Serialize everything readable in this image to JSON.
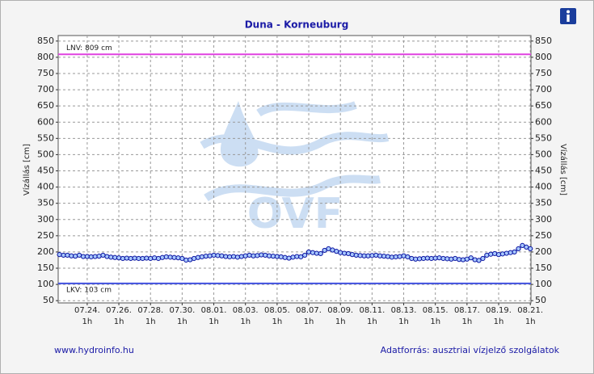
{
  "chart_data": {
    "type": "line",
    "title": "Duna - Korneuburg",
    "ylabel": "Vízállás [cm]",
    "y2label": "Vízállás [cm]",
    "ylim": [
      43,
      867
    ],
    "yticks": [
      50,
      100,
      150,
      200,
      250,
      300,
      350,
      400,
      450,
      500,
      550,
      600,
      650,
      700,
      750,
      800,
      850
    ],
    "y2lim": [
      43,
      867
    ],
    "y2ticks": [
      50,
      100,
      150,
      200,
      250,
      300,
      350,
      400,
      450,
      500,
      550,
      600,
      650,
      700,
      750,
      800,
      850
    ],
    "xlim": [
      "07.22. 5h",
      "08.21. 2h"
    ],
    "xticks": [
      {
        "date": "07.24.",
        "hour": "1h"
      },
      {
        "date": "07.26.",
        "hour": "1h"
      },
      {
        "date": "07.28.",
        "hour": "1h"
      },
      {
        "date": "07.30.",
        "hour": "1h"
      },
      {
        "date": "08.01.",
        "hour": "1h"
      },
      {
        "date": "08.03.",
        "hour": "1h"
      },
      {
        "date": "08.05.",
        "hour": "1h"
      },
      {
        "date": "08.07.",
        "hour": "1h"
      },
      {
        "date": "08.09.",
        "hour": "1h"
      },
      {
        "date": "08.11.",
        "hour": "1h"
      },
      {
        "date": "08.13.",
        "hour": "1h"
      },
      {
        "date": "08.15.",
        "hour": "1h"
      },
      {
        "date": "08.17.",
        "hour": "1h"
      },
      {
        "date": "08.19.",
        "hour": "1h"
      },
      {
        "date": "08.21.",
        "hour": "1h"
      }
    ],
    "grid": true,
    "series": [
      {
        "color": "#0a14a0",
        "marker_fill": "#a8c8ff",
        "x": [
          "07.22. 7h",
          "07.22. 13h",
          "07.22. 19h",
          "07.23. 1h",
          "07.23. 7h",
          "07.23. 13h",
          "07.23. 19h",
          "07.24. 1h",
          "07.24. 7h",
          "07.24. 13h",
          "07.24. 19h",
          "07.25. 1h",
          "07.25. 7h",
          "07.25. 13h",
          "07.25. 19h",
          "07.26. 1h",
          "07.26. 7h",
          "07.26. 13h",
          "07.26. 19h",
          "07.27. 1h",
          "07.27. 7h",
          "07.27. 13h",
          "07.27. 19h",
          "07.28. 1h",
          "07.28. 7h",
          "07.28. 13h",
          "07.28. 19h",
          "07.29. 1h",
          "07.29. 7h",
          "07.29. 13h",
          "07.29. 19h",
          "07.30. 1h",
          "07.30. 7h",
          "07.30. 13h",
          "07.30. 19h",
          "07.31. 1h",
          "07.31. 7h",
          "07.31. 13h",
          "07.31. 19h",
          "08.01. 1h",
          "08.01. 7h",
          "08.01. 13h",
          "08.01. 19h",
          "08.02. 1h",
          "08.02. 7h",
          "08.02. 13h",
          "08.02. 19h",
          "08.03. 1h",
          "08.03. 7h",
          "08.03. 13h",
          "08.03. 19h",
          "08.04. 1h",
          "08.04. 7h",
          "08.04. 13h",
          "08.04. 19h",
          "08.05. 1h",
          "08.05. 7h",
          "08.05. 13h",
          "08.05. 19h",
          "08.06. 1h",
          "08.06. 7h",
          "08.06. 13h",
          "08.06. 19h",
          "08.07. 1h",
          "08.07. 7h",
          "08.07. 13h",
          "08.07. 19h",
          "08.08. 1h",
          "08.08. 7h",
          "08.08. 13h",
          "08.08. 19h",
          "08.09. 1h",
          "08.09. 7h",
          "08.09. 13h",
          "08.09. 19h",
          "08.10. 1h",
          "08.10. 7h",
          "08.10. 13h",
          "08.10. 19h",
          "08.11. 1h",
          "08.11. 7h",
          "08.11. 13h",
          "08.11. 19h",
          "08.12. 1h",
          "08.12. 7h",
          "08.12. 13h",
          "08.12. 19h",
          "08.13. 1h",
          "08.13. 7h",
          "08.13. 13h",
          "08.13. 19h",
          "08.14. 1h",
          "08.14. 7h",
          "08.14. 13h",
          "08.14. 19h",
          "08.15. 1h",
          "08.15. 7h",
          "08.15. 13h",
          "08.15. 19h",
          "08.16. 1h",
          "08.16. 7h",
          "08.16. 13h",
          "08.16. 19h",
          "08.17. 1h",
          "08.17. 7h",
          "08.17. 13h",
          "08.17. 19h",
          "08.18. 1h",
          "08.18. 7h",
          "08.18. 13h",
          "08.18. 19h",
          "08.19. 1h",
          "08.19. 7h",
          "08.19. 13h",
          "08.19. 19h",
          "08.20. 1h",
          "08.20. 7h",
          "08.20. 13h",
          "08.20. 19h",
          "08.21. 1h"
        ],
        "values": [
          192,
          190,
          190,
          188,
          187,
          190,
          186,
          186,
          185,
          186,
          187,
          190,
          186,
          184,
          183,
          182,
          180,
          181,
          180,
          181,
          180,
          180,
          181,
          180,
          182,
          180,
          183,
          185,
          184,
          183,
          182,
          180,
          175,
          176,
          180,
          183,
          185,
          187,
          188,
          190,
          189,
          188,
          186,
          185,
          186,
          184,
          186,
          188,
          190,
          188,
          189,
          191,
          190,
          188,
          187,
          186,
          185,
          183,
          181,
          184,
          186,
          185,
          190,
          200,
          198,
          196,
          195,
          205,
          210,
          206,
          202,
          198,
          196,
          195,
          192,
          190,
          189,
          188,
          188,
          189,
          190,
          188,
          187,
          186,
          184,
          185,
          186,
          188,
          185,
          180,
          178,
          179,
          180,
          181,
          180,
          181,
          182,
          180,
          179,
          178,
          180,
          177,
          176,
          178,
          182,
          176,
          174,
          180,
          190,
          193,
          195,
          192,
          194,
          196,
          198,
          200,
          210,
          220,
          215,
          210
        ]
      }
    ],
    "reference_lines": [
      {
        "label": "LNV: 809 cm",
        "value": 809,
        "color": "#e040e0"
      },
      {
        "label": "LKV: 103 cm",
        "value": 103,
        "color": "#4050e0"
      }
    ],
    "watermark": "OVF",
    "footer_left": "www.hydroinfo.hu",
    "footer_right": "Adatforrás: ausztriai vízjelző szolgálatok"
  }
}
